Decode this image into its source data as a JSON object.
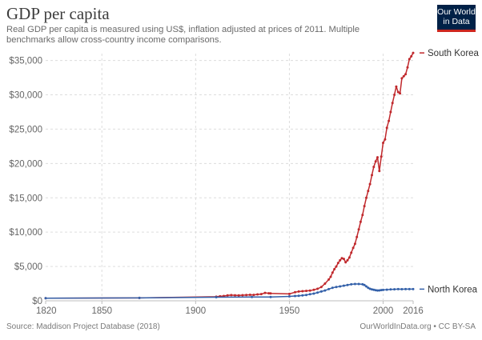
{
  "chart_data": {
    "type": "line",
    "title": "GDP per capita",
    "subtitle": "Real GDP per capita is measured using US$, inflation adjusted at prices of 2011. Multiple benchmarks allow cross-country income comparisons.",
    "xlabel": "",
    "ylabel": "",
    "xlim": [
      1820,
      2016
    ],
    "ylim": [
      0,
      36000
    ],
    "grid": true,
    "legend_placement": "right (labels at line ends)",
    "x_ticks": [
      1820,
      1850,
      1900,
      1950,
      2000,
      2016
    ],
    "x_tick_labels": [
      "1820",
      "1850",
      "1900",
      "1950",
      "2000",
      "2016"
    ],
    "y_ticks": [
      0,
      5000,
      10000,
      15000,
      20000,
      25000,
      30000,
      35000
    ],
    "y_tick_labels": [
      "$0",
      "$5,000",
      "$10,000",
      "$15,000",
      "$20,000",
      "$25,000",
      "$30,000",
      "$35,000"
    ],
    "series": [
      {
        "name": "South Korea",
        "color": "#c0282c",
        "points": [
          [
            1820,
            370
          ],
          [
            1870,
            420
          ],
          [
            1911,
            600
          ],
          [
            1913,
            650
          ],
          [
            1915,
            700
          ],
          [
            1917,
            780
          ],
          [
            1919,
            830
          ],
          [
            1921,
            800
          ],
          [
            1923,
            790
          ],
          [
            1925,
            820
          ],
          [
            1927,
            850
          ],
          [
            1929,
            870
          ],
          [
            1931,
            860
          ],
          [
            1933,
            930
          ],
          [
            1935,
            980
          ],
          [
            1937,
            1150
          ],
          [
            1939,
            1100
          ],
          [
            1940,
            1070
          ],
          [
            1950,
            1000
          ],
          [
            1953,
            1250
          ],
          [
            1955,
            1350
          ],
          [
            1957,
            1400
          ],
          [
            1959,
            1450
          ],
          [
            1961,
            1480
          ],
          [
            1963,
            1600
          ],
          [
            1965,
            1750
          ],
          [
            1967,
            2000
          ],
          [
            1969,
            2500
          ],
          [
            1971,
            3100
          ],
          [
            1972,
            3500
          ],
          [
            1973,
            4100
          ],
          [
            1974,
            4600
          ],
          [
            1975,
            5000
          ],
          [
            1976,
            5500
          ],
          [
            1977,
            5900
          ],
          [
            1978,
            6200
          ],
          [
            1979,
            6100
          ],
          [
            1980,
            5600
          ],
          [
            1981,
            5900
          ],
          [
            1982,
            6300
          ],
          [
            1983,
            7000
          ],
          [
            1984,
            7700
          ],
          [
            1985,
            8300
          ],
          [
            1986,
            9300
          ],
          [
            1987,
            10400
          ],
          [
            1988,
            11500
          ],
          [
            1989,
            12500
          ],
          [
            1990,
            13800
          ],
          [
            1991,
            15000
          ],
          [
            1992,
            16000
          ],
          [
            1993,
            17000
          ],
          [
            1994,
            18300
          ],
          [
            1995,
            19500
          ],
          [
            1996,
            20300
          ],
          [
            1997,
            20900
          ],
          [
            1998,
            18900
          ],
          [
            1999,
            21000
          ],
          [
            2000,
            23000
          ],
          [
            2001,
            23500
          ],
          [
            2002,
            25200
          ],
          [
            2003,
            26200
          ],
          [
            2004,
            27500
          ],
          [
            2005,
            28800
          ],
          [
            2006,
            30000
          ],
          [
            2007,
            31200
          ],
          [
            2008,
            30400
          ],
          [
            2009,
            30200
          ],
          [
            2010,
            32400
          ],
          [
            2011,
            32700
          ],
          [
            2012,
            33000
          ],
          [
            2013,
            34000
          ],
          [
            2014,
            35200
          ],
          [
            2015,
            35600
          ],
          [
            2016,
            36100
          ]
        ]
      },
      {
        "name": "North Korea",
        "color": "#3360a9",
        "points": [
          [
            1820,
            370
          ],
          [
            1870,
            420
          ],
          [
            1911,
            520
          ],
          [
            1930,
            560
          ],
          [
            1940,
            560
          ],
          [
            1950,
            640
          ],
          [
            1953,
            700
          ],
          [
            1955,
            730
          ],
          [
            1957,
            780
          ],
          [
            1959,
            850
          ],
          [
            1961,
            950
          ],
          [
            1963,
            1050
          ],
          [
            1965,
            1200
          ],
          [
            1967,
            1350
          ],
          [
            1969,
            1500
          ],
          [
            1971,
            1700
          ],
          [
            1973,
            1900
          ],
          [
            1975,
            2000
          ],
          [
            1977,
            2100
          ],
          [
            1979,
            2200
          ],
          [
            1981,
            2300
          ],
          [
            1983,
            2400
          ],
          [
            1985,
            2450
          ],
          [
            1987,
            2450
          ],
          [
            1989,
            2400
          ],
          [
            1990,
            2300
          ],
          [
            1991,
            2100
          ],
          [
            1992,
            1900
          ],
          [
            1993,
            1750
          ],
          [
            1994,
            1650
          ],
          [
            1995,
            1600
          ],
          [
            1996,
            1550
          ],
          [
            1997,
            1500
          ],
          [
            1998,
            1520
          ],
          [
            1999,
            1560
          ],
          [
            2000,
            1580
          ],
          [
            2002,
            1620
          ],
          [
            2004,
            1650
          ],
          [
            2006,
            1680
          ],
          [
            2008,
            1700
          ],
          [
            2010,
            1690
          ],
          [
            2012,
            1700
          ],
          [
            2014,
            1700
          ],
          [
            2016,
            1700
          ]
        ]
      }
    ]
  },
  "logo": {
    "line1": "Our World",
    "line2": "in Data"
  },
  "footer": {
    "source": "Source: Maddison Project Database (2018)",
    "credit": "OurWorldInData.org • CC BY-SA"
  }
}
